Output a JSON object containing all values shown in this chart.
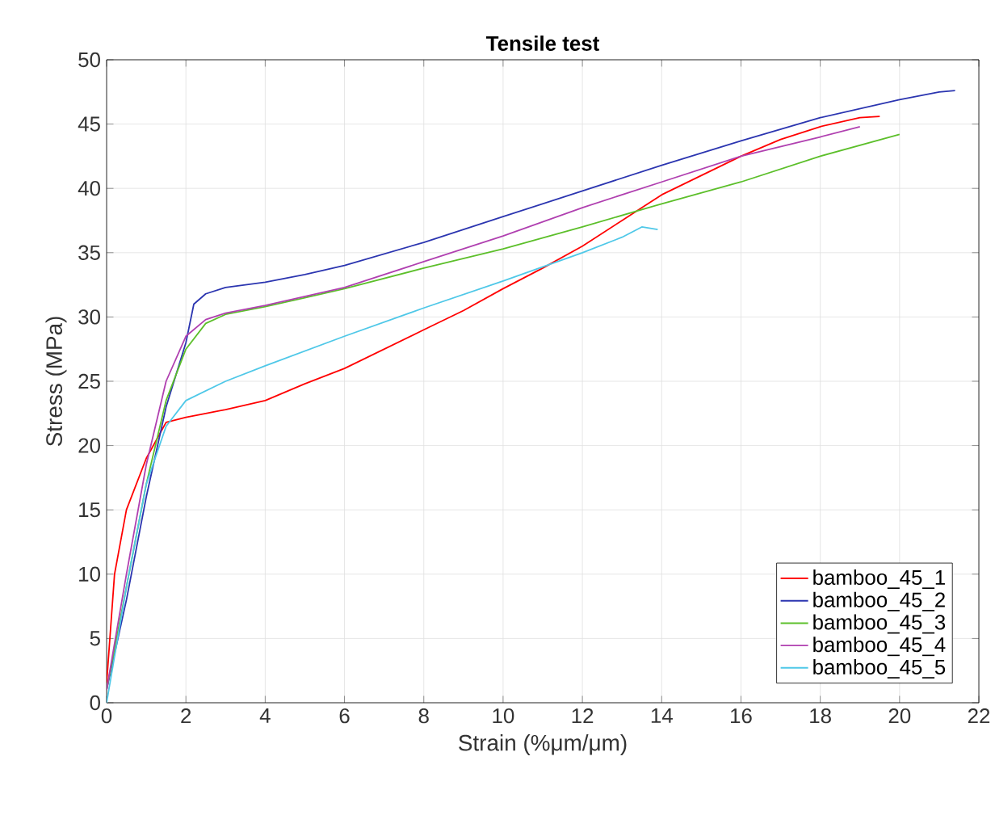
{
  "chart_data": {
    "type": "line",
    "title": "Tensile test",
    "xlabel": "Strain (%μm/μm)",
    "ylabel": "Stress (MPa)",
    "xlim": [
      0,
      22
    ],
    "ylim": [
      0,
      50
    ],
    "xticks": [
      0,
      2,
      4,
      6,
      8,
      10,
      12,
      14,
      16,
      18,
      20,
      22
    ],
    "yticks": [
      0,
      5,
      10,
      15,
      20,
      25,
      30,
      35,
      40,
      45,
      50
    ],
    "grid": true,
    "legend": "bottom right",
    "marker": "none",
    "line_style": "solid",
    "series": [
      {
        "name": "bamboo_45_1",
        "color": "#ff0000",
        "x": [
          0,
          0.2,
          0.5,
          1,
          1.5,
          2,
          2.5,
          3,
          4,
          5,
          6,
          7,
          8,
          9,
          10,
          11,
          12,
          13,
          14,
          15,
          16,
          17,
          18,
          19,
          19.5
        ],
        "values": [
          1.5,
          10,
          15,
          19,
          21.8,
          22.2,
          22.5,
          22.8,
          23.5,
          24.8,
          26,
          27.5,
          29,
          30.5,
          32.2,
          33.8,
          35.5,
          37.5,
          39.5,
          41,
          42.5,
          43.8,
          44.8,
          45.5,
          45.6
        ]
      },
      {
        "name": "bamboo_45_2",
        "color": "#2b35b0",
        "x": [
          0,
          0.5,
          1,
          1.5,
          2,
          2.2,
          2.5,
          3,
          4,
          5,
          6,
          8,
          10,
          12,
          14,
          16,
          18,
          20,
          21,
          21.4
        ],
        "values": [
          1,
          8,
          16,
          23,
          28,
          31,
          31.8,
          32.3,
          32.7,
          33.3,
          34,
          35.8,
          37.8,
          39.8,
          41.8,
          43.7,
          45.5,
          46.9,
          47.5,
          47.6
        ]
      },
      {
        "name": "bamboo_45_3",
        "color": "#5cbf2a",
        "x": [
          0,
          1,
          1.5,
          2,
          2.5,
          3,
          4,
          5,
          6,
          8,
          10,
          12,
          14,
          16,
          18,
          20
        ],
        "values": [
          1,
          17,
          23.5,
          27.5,
          29.5,
          30.2,
          30.8,
          31.5,
          32.2,
          33.8,
          35.3,
          37,
          38.8,
          40.5,
          42.5,
          44.2
        ]
      },
      {
        "name": "bamboo_45_4",
        "color": "#b040b0",
        "x": [
          0,
          0.5,
          1,
          1.5,
          2,
          2.5,
          3,
          4,
          6,
          8,
          10,
          12,
          14,
          16,
          18,
          19
        ],
        "values": [
          1,
          10,
          18.5,
          25,
          28.5,
          29.8,
          30.3,
          30.9,
          32.3,
          34.3,
          36.3,
          38.5,
          40.5,
          42.5,
          44,
          44.8
        ]
      },
      {
        "name": "bamboo_45_5",
        "color": "#4fc8e8",
        "x": [
          0,
          0.5,
          1,
          1.5,
          2,
          3,
          4,
          6,
          8,
          10,
          12,
          13,
          13.5,
          13.9
        ],
        "values": [
          0,
          9,
          17,
          21.5,
          23.5,
          25,
          26.2,
          28.5,
          30.7,
          32.8,
          35,
          36.2,
          37,
          36.8
        ]
      }
    ]
  }
}
